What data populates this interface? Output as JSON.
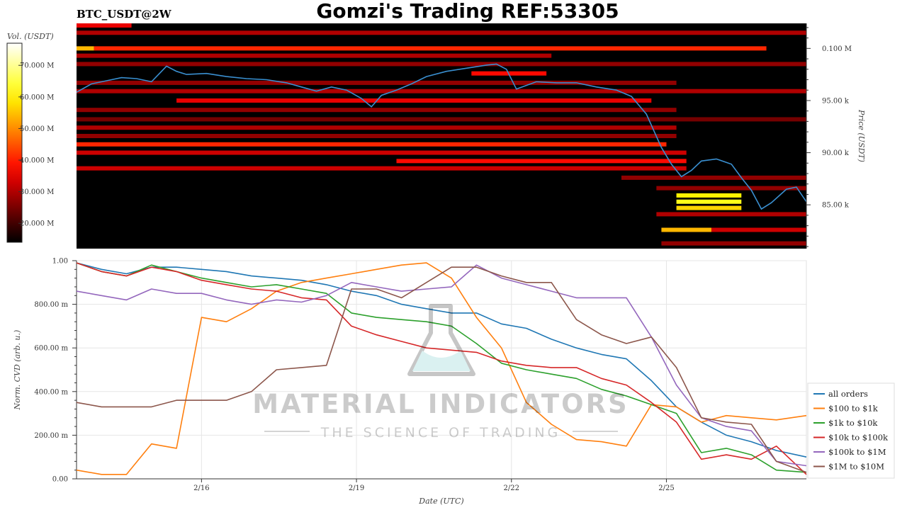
{
  "header": {
    "symbol": "BTC_USDT@2W",
    "title": "Gomzi's Trading REF:53305"
  },
  "watermark": {
    "brand": "MATERIAL INDICATORS",
    "tagline": "THE SCIENCE OF TRADING"
  },
  "colors": {
    "background": "#ffffff",
    "heatmap_base": "#000000",
    "price_line": "#3a8fd0",
    "grid": "#e6e6e6"
  },
  "chart_data": [
    {
      "type": "heatmap",
      "colorbar": {
        "label": "Vol. (USDT)",
        "ticks": [
          "70.000 M",
          "60.000 M",
          "50.000 M",
          "40.000 M",
          "30.000 M",
          "20.000 M"
        ],
        "tick_values": [
          70,
          60,
          50,
          40,
          30,
          20
        ],
        "range": [
          14,
          77
        ],
        "colormap": "hot"
      },
      "ylabel": "Price (USDT)",
      "y_ticks": [
        "0.100 M",
        "95.00 k",
        "90.00 k",
        "85.00 k"
      ],
      "y_tick_values": [
        100000,
        95000,
        90000,
        85000
      ],
      "ylim": [
        80800,
        102400
      ],
      "x_range_days": [
        0,
        14.6
      ],
      "heat_bands": [
        {
          "price": 102200,
          "from": 0.0,
          "to": 1.1,
          "intensity": 0.4
        },
        {
          "price": 101500,
          "from": 0.0,
          "to": 14.6,
          "intensity": 0.3
        },
        {
          "price": 100000,
          "from": 0.0,
          "to": 0.35,
          "intensity": 0.75
        },
        {
          "price": 100000,
          "from": 0.35,
          "to": 13.8,
          "intensity": 0.5
        },
        {
          "price": 99300,
          "from": 0.0,
          "to": 9.5,
          "intensity": 0.3
        },
        {
          "price": 98500,
          "from": 0.0,
          "to": 14.6,
          "intensity": 0.25
        },
        {
          "price": 97600,
          "from": 7.9,
          "to": 9.4,
          "intensity": 0.45
        },
        {
          "price": 96700,
          "from": 0.0,
          "to": 12.0,
          "intensity": 0.25
        },
        {
          "price": 95900,
          "from": 0.0,
          "to": 14.6,
          "intensity": 0.3
        },
        {
          "price": 95000,
          "from": 2.0,
          "to": 11.5,
          "intensity": 0.4
        },
        {
          "price": 94100,
          "from": 0.0,
          "to": 12.0,
          "intensity": 0.25
        },
        {
          "price": 93200,
          "from": 0.0,
          "to": 14.6,
          "intensity": 0.2
        },
        {
          "price": 92400,
          "from": 0.0,
          "to": 12.0,
          "intensity": 0.3
        },
        {
          "price": 91600,
          "from": 0.0,
          "to": 12.0,
          "intensity": 0.25
        },
        {
          "price": 90800,
          "from": 0.0,
          "to": 11.8,
          "intensity": 0.5
        },
        {
          "price": 90000,
          "from": 0.0,
          "to": 12.2,
          "intensity": 0.35
        },
        {
          "price": 89200,
          "from": 6.4,
          "to": 12.2,
          "intensity": 0.45
        },
        {
          "price": 88500,
          "from": 0.0,
          "to": 12.2,
          "intensity": 0.35
        },
        {
          "price": 87600,
          "from": 10.9,
          "to": 14.6,
          "intensity": 0.25
        },
        {
          "price": 86600,
          "from": 11.6,
          "to": 14.6,
          "intensity": 0.25
        },
        {
          "price": 85900,
          "from": 12.0,
          "to": 13.3,
          "intensity": 0.85
        },
        {
          "price": 85300,
          "from": 12.0,
          "to": 13.3,
          "intensity": 0.9
        },
        {
          "price": 84700,
          "from": 12.0,
          "to": 13.3,
          "intensity": 0.8
        },
        {
          "price": 84100,
          "from": 11.6,
          "to": 14.6,
          "intensity": 0.3
        },
        {
          "price": 82600,
          "from": 11.7,
          "to": 12.7,
          "intensity": 0.75
        },
        {
          "price": 82600,
          "from": 12.7,
          "to": 14.6,
          "intensity": 0.35
        },
        {
          "price": 81300,
          "from": 11.7,
          "to": 14.6,
          "intensity": 0.25
        }
      ],
      "price_series": {
        "name": "price",
        "x": [
          0.0,
          0.3,
          0.6,
          0.9,
          1.2,
          1.5,
          1.8,
          2.0,
          2.2,
          2.6,
          3.0,
          3.4,
          3.8,
          4.2,
          4.5,
          4.8,
          5.1,
          5.4,
          5.7,
          5.9,
          6.1,
          6.4,
          6.7,
          7.0,
          7.4,
          7.8,
          8.2,
          8.4,
          8.6,
          8.8,
          9.2,
          9.6,
          10.0,
          10.4,
          10.8,
          11.1,
          11.4,
          11.7,
          11.9,
          12.1,
          12.3,
          12.5,
          12.8,
          13.1,
          13.3,
          13.5,
          13.7,
          13.9,
          14.2,
          14.4,
          14.6
        ],
        "y": [
          95800,
          96600,
          96900,
          97200,
          97100,
          96800,
          98300,
          97800,
          97500,
          97600,
          97300,
          97100,
          97000,
          96700,
          96300,
          95900,
          96300,
          96000,
          95200,
          94400,
          95500,
          96000,
          96600,
          97300,
          97800,
          98100,
          98400,
          98500,
          98000,
          96100,
          96800,
          96700,
          96700,
          96300,
          96000,
          95400,
          93700,
          90500,
          88900,
          87700,
          88300,
          89200,
          89400,
          88900,
          87600,
          86400,
          84600,
          85200,
          86500,
          86700,
          85300
        ]
      }
    },
    {
      "type": "line",
      "xlabel": "Date (UTC)",
      "ylabel": "Norm. CVD (arb. u.)",
      "ylim": [
        0,
        1
      ],
      "y_ticks": [
        "0.00",
        "200.00 m",
        "400.00 m",
        "600.00 m",
        "800.00 m",
        "1.00"
      ],
      "y_tick_values": [
        0,
        0.2,
        0.4,
        0.6,
        0.8,
        1.0
      ],
      "x_range_days": [
        0,
        14.6
      ],
      "x_ticks": [
        "2/16",
        "2/19",
        "2/22",
        "2/25"
      ],
      "x_tick_values": [
        2.5,
        5.6,
        8.7,
        11.8
      ],
      "grid": true,
      "legend_position": "right",
      "x": [
        0.0,
        0.5,
        1.0,
        1.5,
        2.0,
        2.5,
        3.0,
        3.5,
        4.0,
        4.5,
        5.0,
        5.5,
        6.0,
        6.5,
        7.0,
        7.5,
        8.0,
        8.5,
        9.0,
        9.5,
        10.0,
        10.5,
        11.0,
        11.5,
        12.0,
        12.5,
        13.0,
        13.5,
        14.0,
        14.6
      ],
      "series": [
        {
          "name": "all orders",
          "color": "#1f77b4",
          "values": [
            0.99,
            0.96,
            0.94,
            0.97,
            0.97,
            0.96,
            0.95,
            0.93,
            0.92,
            0.91,
            0.89,
            0.86,
            0.84,
            0.8,
            0.78,
            0.76,
            0.76,
            0.71,
            0.69,
            0.64,
            0.6,
            0.57,
            0.55,
            0.45,
            0.33,
            0.26,
            0.2,
            0.17,
            0.13,
            0.1
          ]
        },
        {
          "name": "$100 to $1k",
          "color": "#ff7f0e",
          "values": [
            0.04,
            0.02,
            0.02,
            0.16,
            0.14,
            0.74,
            0.72,
            0.78,
            0.86,
            0.9,
            0.92,
            0.94,
            0.96,
            0.98,
            0.99,
            0.92,
            0.74,
            0.6,
            0.35,
            0.25,
            0.18,
            0.17,
            0.15,
            0.34,
            0.33,
            0.26,
            0.29,
            0.28,
            0.27,
            0.29
          ]
        },
        {
          "name": "$1k to $10k",
          "color": "#2ca02c",
          "values": [
            0.99,
            0.95,
            0.93,
            0.98,
            0.95,
            0.92,
            0.9,
            0.88,
            0.89,
            0.87,
            0.85,
            0.76,
            0.74,
            0.73,
            0.72,
            0.7,
            0.62,
            0.53,
            0.5,
            0.48,
            0.46,
            0.41,
            0.38,
            0.34,
            0.3,
            0.12,
            0.14,
            0.11,
            0.04,
            0.03
          ]
        },
        {
          "name": "$10k to $100k",
          "color": "#d62728",
          "values": [
            0.99,
            0.95,
            0.93,
            0.97,
            0.95,
            0.91,
            0.89,
            0.87,
            0.86,
            0.83,
            0.82,
            0.7,
            0.66,
            0.63,
            0.6,
            0.59,
            0.58,
            0.54,
            0.52,
            0.51,
            0.51,
            0.46,
            0.43,
            0.35,
            0.26,
            0.09,
            0.11,
            0.09,
            0.15,
            0.02
          ]
        },
        {
          "name": "$100k to $1M",
          "color": "#9467bd",
          "values": [
            0.86,
            0.84,
            0.82,
            0.87,
            0.85,
            0.85,
            0.82,
            0.8,
            0.82,
            0.81,
            0.84,
            0.9,
            0.88,
            0.86,
            0.87,
            0.88,
            0.98,
            0.92,
            0.89,
            0.86,
            0.83,
            0.83,
            0.83,
            0.65,
            0.43,
            0.28,
            0.24,
            0.22,
            0.08,
            0.06
          ]
        },
        {
          "name": "$1M to $10M",
          "color": "#8c564b",
          "values": [
            0.35,
            0.33,
            0.33,
            0.33,
            0.36,
            0.36,
            0.36,
            0.4,
            0.5,
            0.51,
            0.52,
            0.87,
            0.87,
            0.83,
            0.9,
            0.97,
            0.97,
            0.93,
            0.9,
            0.9,
            0.73,
            0.66,
            0.62,
            0.65,
            0.51,
            0.28,
            0.26,
            0.25,
            0.08,
            0.03
          ]
        }
      ]
    }
  ]
}
